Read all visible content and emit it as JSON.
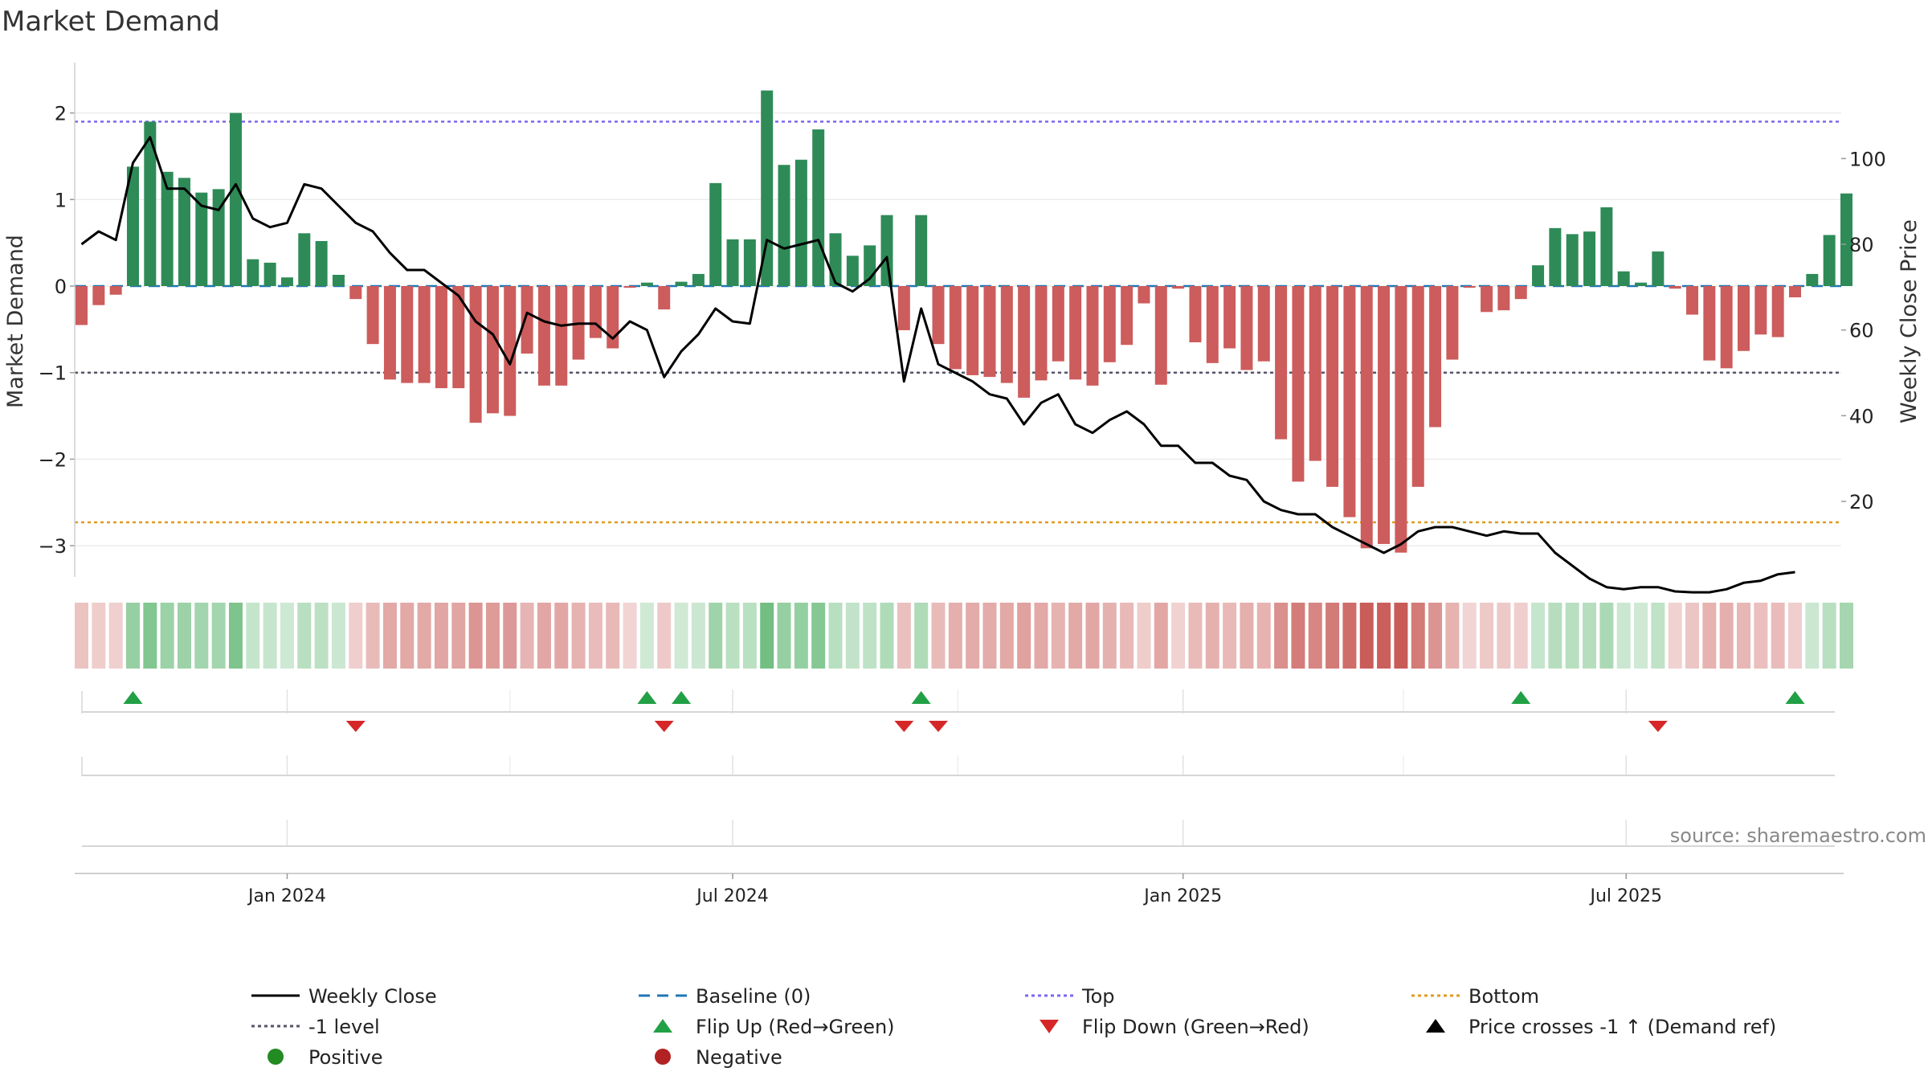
{
  "chart_data": {
    "type": "bar",
    "title": "Market Demand",
    "ylabel": "Market Demand",
    "y2label": "Weekly Close Price",
    "source": "source: sharemaestro.com",
    "ylim": [
      -3.4,
      2.55
    ],
    "y2lim": [
      3.5,
      114.5
    ],
    "yticks": [
      2,
      1,
      0,
      -1,
      -2,
      -3
    ],
    "y2ticks": [
      100,
      80,
      60,
      40,
      20
    ],
    "grid": true,
    "legend_position": "bottom",
    "x_start": "2023-10-09",
    "x_step_days": 7,
    "xticks": [
      {
        "date": "2024-01-01",
        "label": "Jan 2024"
      },
      {
        "date": "2024-07-01",
        "label": "Jul 2024"
      },
      {
        "date": "2025-01-01",
        "label": "Jan 2025"
      },
      {
        "date": "2025-07-01",
        "label": "Jul 2025"
      }
    ],
    "reference_lines": {
      "top": 1.9,
      "bottom": -2.73,
      "minus_one": -1,
      "baseline": 0
    },
    "colors": {
      "positive_bar": "#2e8b57",
      "negative_bar": "#cd5c5c",
      "close_line": "#000000",
      "baseline": "#1f77b4",
      "top": "#7b68ee",
      "bottom": "#e09b20",
      "minus_one": "#55556a",
      "flip_up": "#22a046",
      "flip_down": "#d62728",
      "positive_dot": "#228b22",
      "negative_dot": "#b22222",
      "cross_marker": "#000000"
    },
    "demand": [
      -0.45,
      -0.22,
      -0.1,
      1.38,
      1.9,
      1.32,
      1.25,
      1.08,
      1.12,
      2.0,
      0.31,
      0.27,
      0.1,
      0.61,
      0.52,
      0.13,
      -0.15,
      -0.67,
      -1.08,
      -1.12,
      -1.12,
      -1.18,
      -1.18,
      -1.58,
      -1.47,
      -1.5,
      -0.78,
      -1.15,
      -1.15,
      -0.85,
      -0.6,
      -0.72,
      -0.02,
      0.04,
      -0.27,
      0.05,
      0.14,
      1.19,
      0.54,
      0.54,
      2.26,
      1.4,
      1.46,
      1.81,
      0.61,
      0.35,
      0.47,
      0.82,
      -0.51,
      0.82,
      -0.67,
      -0.96,
      -1.03,
      -1.05,
      -1.12,
      -1.29,
      -1.09,
      -0.87,
      -1.08,
      -1.15,
      -0.88,
      -0.68,
      -0.2,
      -1.14,
      -0.03,
      -0.65,
      -0.89,
      -0.72,
      -0.97,
      -0.87,
      -1.77,
      -2.26,
      -2.02,
      -2.32,
      -2.67,
      -3.03,
      -2.98,
      -3.08,
      -2.32,
      -1.63,
      -0.85,
      -0.02,
      -0.3,
      -0.28,
      -0.15,
      0.24,
      0.67,
      0.6,
      0.63,
      0.91,
      0.17,
      0.04,
      0.4,
      -0.03,
      -0.33,
      -0.86,
      -0.95,
      -0.75,
      -0.56,
      -0.59,
      -0.13,
      0.14,
      0.59,
      1.07
    ],
    "close": [
      80,
      83,
      81,
      99,
      105,
      93,
      93,
      89,
      88,
      94,
      86,
      84,
      85,
      94,
      93,
      89,
      85,
      83,
      78,
      74,
      74,
      71,
      68,
      62,
      59,
      52,
      64,
      62,
      61,
      61.5,
      61.5,
      58,
      62,
      60,
      49,
      55,
      59,
      65,
      62,
      61.5,
      81,
      79,
      80,
      81,
      71,
      69,
      72,
      77,
      48,
      65,
      52,
      50,
      48,
      45,
      44,
      38,
      43,
      45,
      38,
      36,
      39,
      41,
      38,
      33,
      33,
      29,
      29,
      26,
      25,
      20,
      18,
      17,
      17,
      14,
      12,
      10,
      8,
      10,
      13,
      14,
      14,
      13,
      12,
      13,
      12.5,
      12.5,
      8,
      5,
      2,
      0,
      -0.5,
      0,
      0,
      -1,
      -1.2,
      -1.2,
      -0.5,
      1,
      1.5,
      3,
      3.5
    ],
    "flip_up": [
      3,
      33,
      35,
      49,
      84,
      100
    ],
    "flip_down": [
      16,
      34,
      48,
      50,
      92
    ],
    "legend": [
      {
        "label": "Weekly Close",
        "symbol": "line",
        "color": "#000000"
      },
      {
        "label": "Baseline (0)",
        "symbol": "dash",
        "color": "#1f77b4"
      },
      {
        "label": "Top",
        "symbol": "dot",
        "color": "#7b68ee"
      },
      {
        "label": "Bottom",
        "symbol": "dot",
        "color": "#e09b20"
      },
      {
        "label": "-1 level",
        "symbol": "dot",
        "color": "#55556a"
      },
      {
        "label": "Flip Up (Red→Green)",
        "symbol": "up",
        "color": "#22a046"
      },
      {
        "label": "Flip Down (Green→Red)",
        "symbol": "down",
        "color": "#d62728"
      },
      {
        "label": "Price crosses -1 ↑ (Demand ref)",
        "symbol": "up",
        "color": "#000000"
      },
      {
        "label": "Positive",
        "symbol": "circle",
        "color": "#228b22"
      },
      {
        "label": "Negative",
        "symbol": "circle",
        "color": "#b22222"
      }
    ]
  }
}
